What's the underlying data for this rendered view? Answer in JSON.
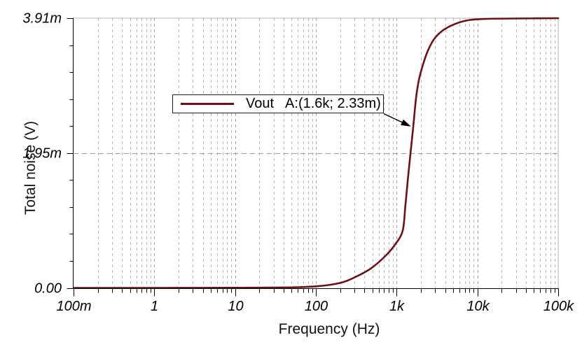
{
  "window": {
    "background": "#ffffff"
  },
  "colors": {
    "curve": "#6f1113",
    "axis": "#000000",
    "grid_minor": "#bbbbbb",
    "grid_major": "#9d9d9d",
    "frame": "#b4b4b4",
    "text": "#000000",
    "legend_border": "#1c1c1c"
  },
  "legend": {
    "series_label": "Vout",
    "marker_text": "A:(1.6k; 2.33m)"
  },
  "chart_data": {
    "type": "line",
    "title": "",
    "xlabel": "Frequency (Hz)",
    "ylabel": "Total noise (V)",
    "x_scale": "log",
    "x_range": [
      0.1,
      100000
    ],
    "y_range_mV": [
      0,
      3.91
    ],
    "grid": {
      "style": "dashed",
      "vertical_log_minor": true,
      "horizontal_major": true
    },
    "legend_position": "inside-top-center",
    "x_ticks": [
      {
        "label": "100m",
        "f": 0.1
      },
      {
        "label": "1",
        "f": 1
      },
      {
        "label": "10",
        "f": 10
      },
      {
        "label": "100",
        "f": 100
      },
      {
        "label": "1k",
        "f": 1000
      },
      {
        "label": "10k",
        "f": 10000
      },
      {
        "label": "100k",
        "f": 100000
      }
    ],
    "y_ticks": [
      {
        "label": "0.00",
        "v": 0
      },
      {
        "label": "1.95m",
        "v": 1.955
      },
      {
        "label": "3.91m",
        "v": 3.91
      }
    ],
    "y_minor_step_mV": 0.391,
    "series": [
      {
        "name": "Vout",
        "color": "#6f1113",
        "points_f_hz_v_mV": [
          [
            0.1,
            0
          ],
          [
            0.5,
            0
          ],
          [
            1,
            0
          ],
          [
            3,
            0.001
          ],
          [
            8,
            0.002
          ],
          [
            15,
            0.003
          ],
          [
            30,
            0.005
          ],
          [
            54,
            0.008
          ],
          [
            100,
            0.022
          ],
          [
            150,
            0.045
          ],
          [
            220,
            0.085
          ],
          [
            325,
            0.17
          ],
          [
            484,
            0.285
          ],
          [
            722,
            0.46
          ],
          [
            974,
            0.64
          ],
          [
            1189,
            0.83
          ],
          [
            1280,
            1.18
          ],
          [
            1368,
            1.54
          ],
          [
            1481,
            1.94
          ],
          [
            1604,
            2.33
          ],
          [
            1738,
            2.75
          ],
          [
            1883,
            3.01
          ],
          [
            2122,
            3.24
          ],
          [
            2440,
            3.44
          ],
          [
            2921,
            3.61
          ],
          [
            3712,
            3.73
          ],
          [
            5108,
            3.82
          ],
          [
            7613,
            3.88
          ],
          [
            13000,
            3.9
          ],
          [
            26000,
            3.905
          ],
          [
            100000,
            3.91
          ]
        ]
      }
    ],
    "marker": {
      "name": "A",
      "label": "A:(1.6k; 2.33m)",
      "f_hz": 1600,
      "v_mV": 2.33
    }
  }
}
